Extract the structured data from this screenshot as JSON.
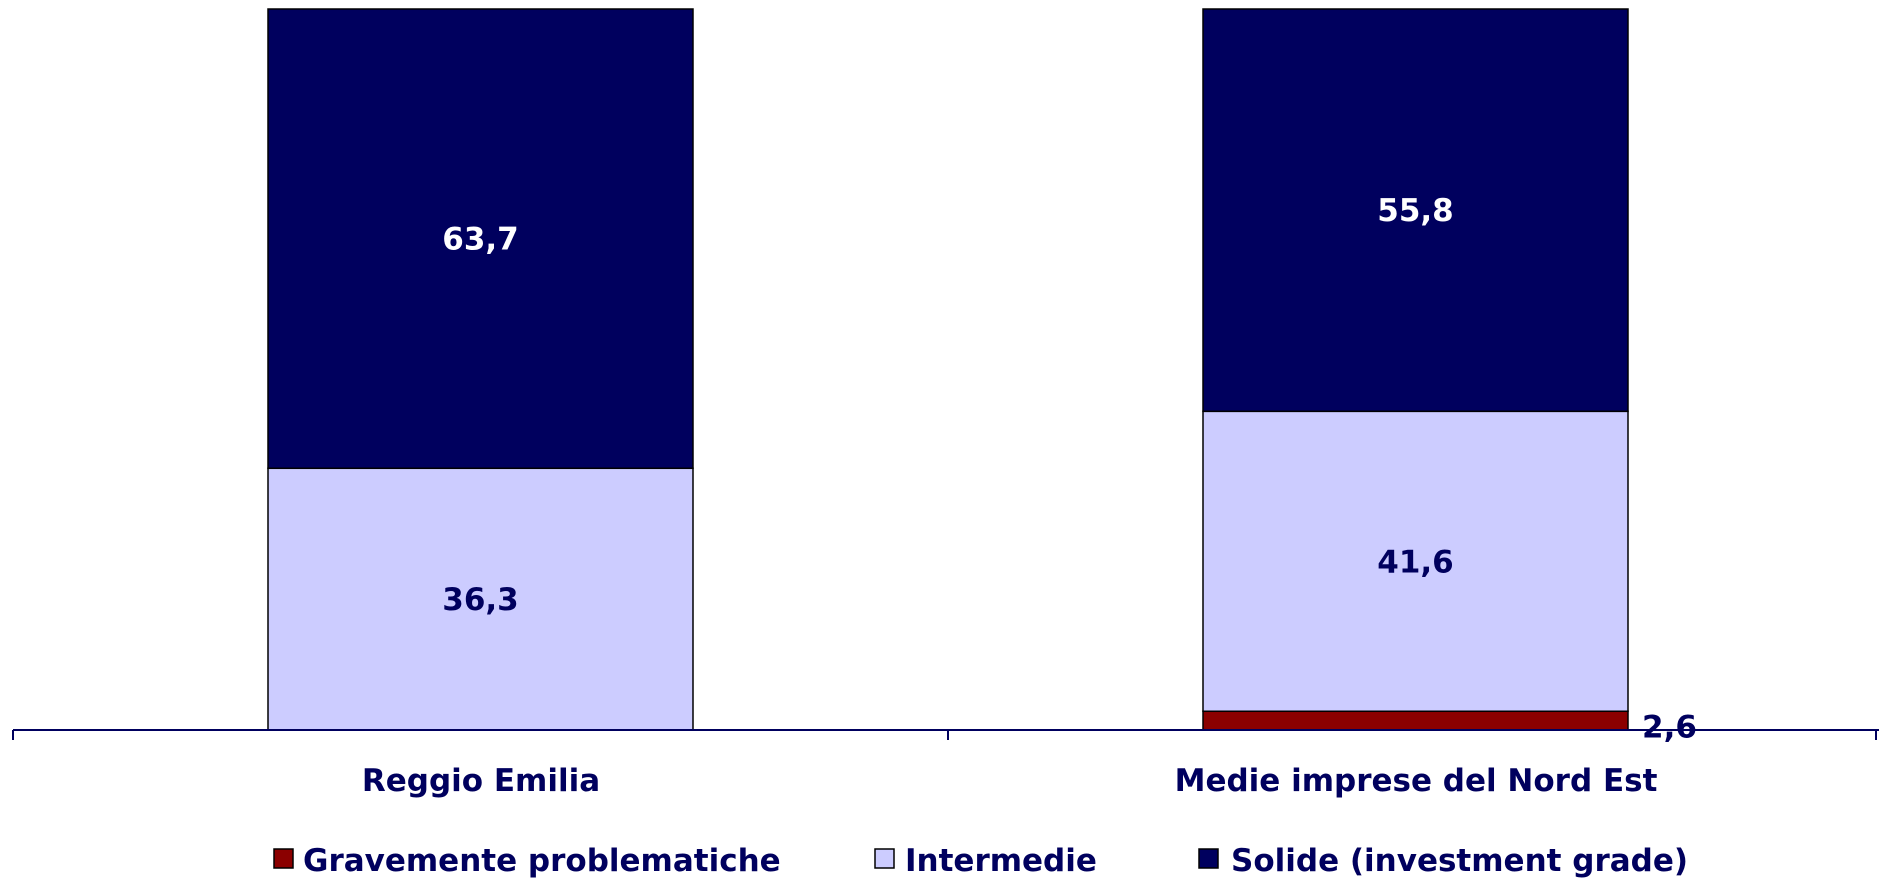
{
  "chart_data": {
    "type": "bar",
    "stacked": true,
    "categories": [
      "Reggio Emilia",
      "Medie imprese del Nord Est"
    ],
    "series": [
      {
        "name": "Gravemente problematiche",
        "values": [
          0,
          2.6
        ],
        "labels": [
          "",
          "2,6"
        ],
        "color": "#8b0000"
      },
      {
        "name": "Intermedie",
        "values": [
          36.3,
          41.6
        ],
        "labels": [
          "36,3",
          "41,6"
        ],
        "color": "#ccccff"
      },
      {
        "name": "Solide (investment grade)",
        "values": [
          63.7,
          55.8
        ],
        "labels": [
          "63,7",
          "55,8"
        ],
        "color": "#00005e"
      }
    ],
    "label_colors": [
      "#00005e",
      "#00005e",
      "#ffffff"
    ],
    "ylim": [
      0,
      100
    ],
    "grid": false,
    "legend_position": "bottom",
    "axis_color": "#00005e"
  }
}
